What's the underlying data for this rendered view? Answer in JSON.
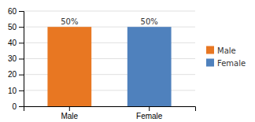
{
  "chart_data": {
    "type": "bar",
    "categories": [
      "Male",
      "Female"
    ],
    "values": [
      50,
      50
    ],
    "value_labels": [
      "50%",
      "50%"
    ],
    "colors": [
      "#E87722",
      "#4F81BD"
    ],
    "ylim": [
      0,
      60
    ],
    "yticks": [
      0,
      10,
      20,
      30,
      40,
      50,
      60
    ],
    "grid": true,
    "data_labels": true,
    "legend": "right"
  }
}
